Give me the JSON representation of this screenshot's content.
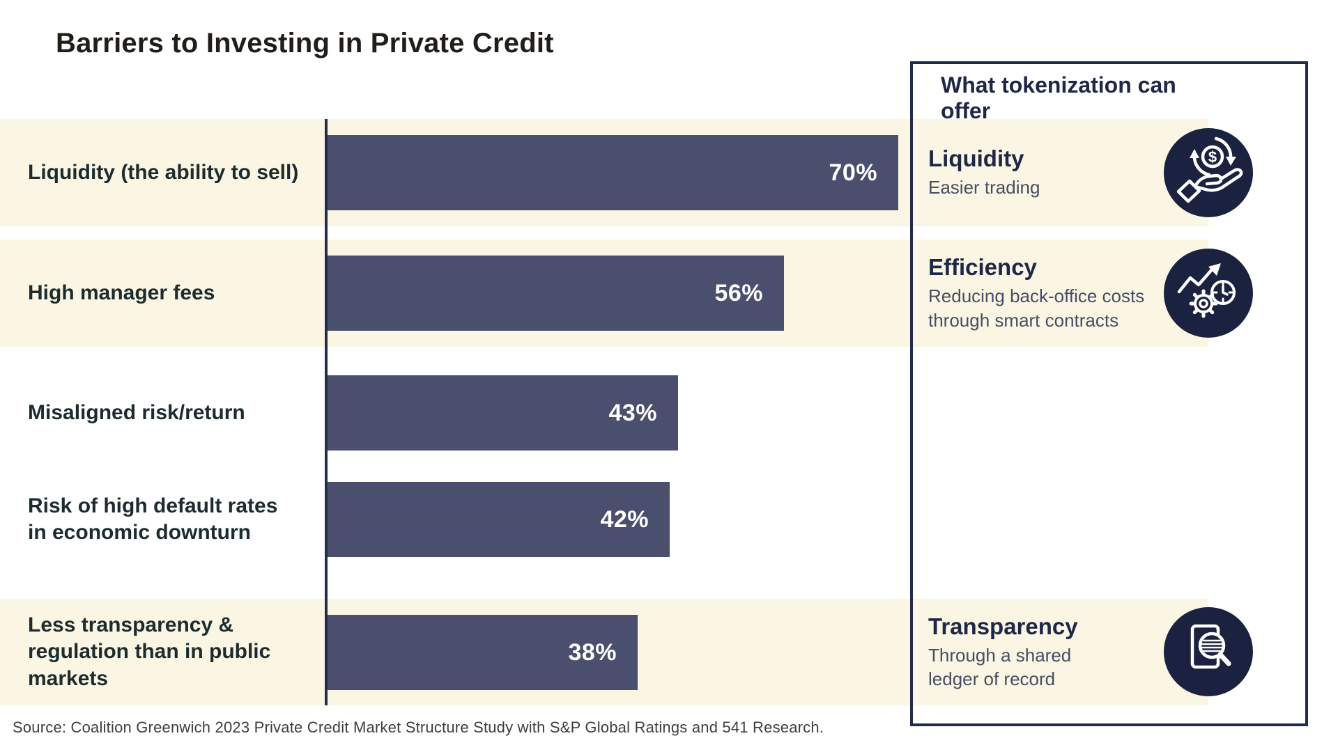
{
  "title": "Barriers to Investing in Private Credit",
  "panel": {
    "header": "What tokenization can offer",
    "offers": [
      {
        "title": "Liquidity",
        "description": "Easier trading",
        "icon": "money-cycle-hand-icon"
      },
      {
        "title": "Efficiency",
        "description": "Reducing back-office costs\nthrough smart contracts",
        "icon": "growth-gear-clock-icon"
      },
      {
        "title": "Transparency",
        "description": "Through a shared\nledger of record",
        "icon": "document-magnifier-icon"
      }
    ]
  },
  "chart_data": {
    "type": "bar",
    "orientation": "horizontal",
    "title": "Barriers to Investing in Private Credit",
    "categories": [
      "Liquidity (the ability to sell)",
      "High manager fees",
      "Misaligned risk/return",
      "Risk of high default rates\nin economic downturn",
      "Less transparency &\nregulation than in public\nmarkets"
    ],
    "values": [
      70,
      56,
      43,
      42,
      38
    ],
    "value_suffix": "%",
    "highlighted_rows": [
      0,
      1,
      4
    ],
    "xlim": [
      0,
      75
    ],
    "grid": false,
    "legend": false,
    "bar_color": "#4A4F6E",
    "highlight_color": "#FAF6E3"
  },
  "colors": {
    "bar": "#4A4F6E",
    "cream_band": "#FAF6E3",
    "navy": "#232B4A",
    "icon_background": "#1B2240",
    "heading_navy": "#1E2746",
    "row_label": "#1C2C2E",
    "value_label": "#FFFFFF"
  },
  "source": "Source: Coalition Greenwich 2023 Private Credit Market Structure Study with S&P Global Ratings and 541 Research."
}
